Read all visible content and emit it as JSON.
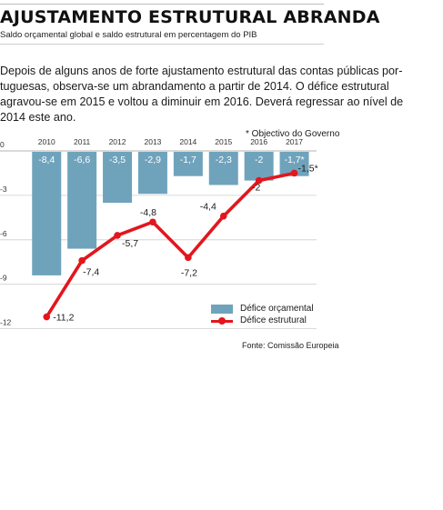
{
  "header": {
    "title": "AJUSTAMENTO ESTRUTURAL ABRANDA",
    "subtitle": "Saldo orçamental global e saldo estrutural em percentagem do PIB"
  },
  "intro": {
    "lines": [
      "Depois de alguns anos de forte ajustamento estrutural das contas públicas por-",
      "tuguesas, observa-se um abrandamento a partir de 2014. O défice estrutural",
      "agravou-se em 2015 e voltou a diminuir em 2016. Deverá regressar ao nível de",
      "2014 este ano."
    ]
  },
  "note": "* Objectivo do Governo",
  "source": "Fonte: Comissão Europeia",
  "colors": {
    "bar": "#6fa3bc",
    "line": "#e3161d",
    "grid": "#cfcfcf"
  },
  "chart_data": {
    "type": "bar",
    "categories": [
      "2010",
      "2011",
      "2012",
      "2013",
      "2014",
      "2015",
      "2016",
      "2017"
    ],
    "ylim": [
      -12,
      0
    ],
    "yticks": [
      "0",
      "-3",
      "-6",
      "-9",
      "-12"
    ],
    "ytick_values": [
      0,
      -3,
      -6,
      -9,
      -12
    ],
    "grid": true,
    "legend_position": "bottom-right",
    "series": [
      {
        "name": "Défice orçamental",
        "type": "bar",
        "values": [
          -8.4,
          -6.6,
          -3.5,
          -2.9,
          -1.7,
          -2.3,
          -2,
          -1.7
        ],
        "labels": [
          "-8,4",
          "-6,6",
          "-3,5",
          "-2,9",
          "-1,7",
          "-2,3",
          "-2",
          "-1,7*"
        ]
      },
      {
        "name": "Défice estrutural",
        "type": "line",
        "values": [
          -11.2,
          -7.4,
          -5.7,
          -4.8,
          -7.2,
          -4.4,
          -2,
          -1.5
        ],
        "labels": [
          "-11,2",
          "-7,4",
          "-5,7",
          "-4,8",
          "-7,2",
          "-4,4",
          "-2",
          "-1,5*"
        ]
      }
    ]
  }
}
